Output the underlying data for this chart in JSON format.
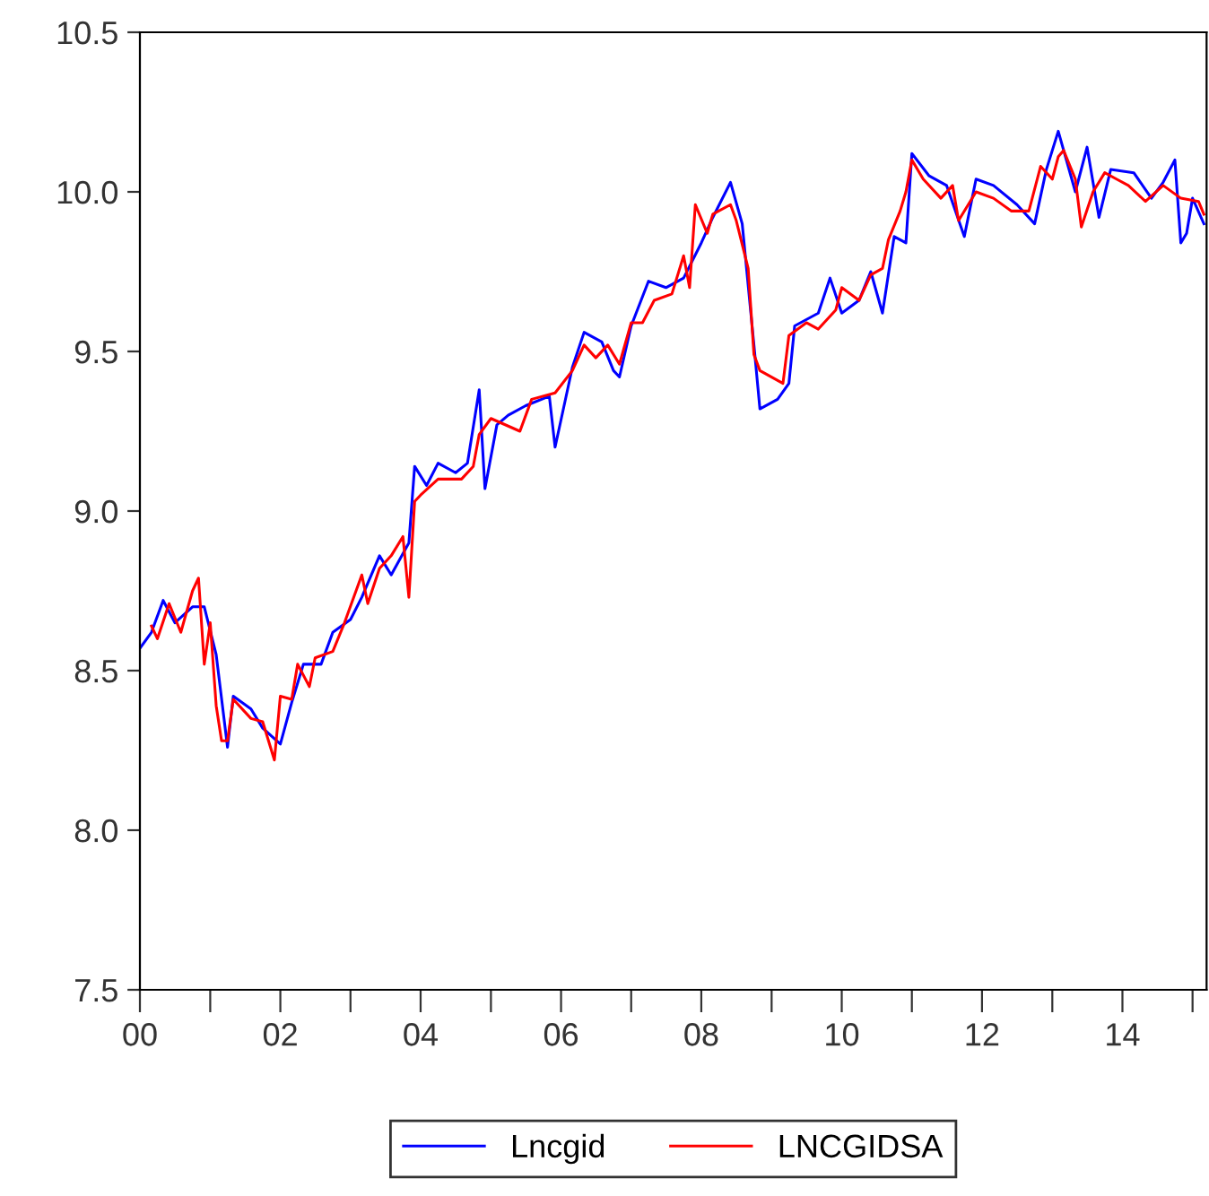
{
  "chart_data": {
    "type": "line",
    "legend": "bottom",
    "grid": false,
    "line_style": "solid",
    "marker": "none",
    "xlim": [
      "2000-01",
      "2015-03-15"
    ],
    "xticks": [
      {
        "value": "2000",
        "label": "00"
      },
      {
        "value": "2001",
        "label": null
      },
      {
        "value": "2002",
        "label": "02"
      },
      {
        "value": "2003",
        "label": null
      },
      {
        "value": "2004",
        "label": "04"
      },
      {
        "value": "2005",
        "label": null
      },
      {
        "value": "2006",
        "label": "06"
      },
      {
        "value": "2007",
        "label": null
      },
      {
        "value": "2008",
        "label": "08"
      },
      {
        "value": "2009",
        "label": null
      },
      {
        "value": "2010",
        "label": "10"
      },
      {
        "value": "2011",
        "label": null
      },
      {
        "value": "2012",
        "label": "12"
      },
      {
        "value": "2013",
        "label": null
      },
      {
        "value": "2014",
        "label": "14"
      },
      {
        "value": "2015",
        "label": null
      }
    ],
    "ylim": [
      7.5,
      10.5
    ],
    "yticks": [
      7.5,
      {
        "value": 8,
        "label": "8.0"
      },
      8.5,
      {
        "value": 9,
        "label": "9.0"
      },
      9.5,
      {
        "value": 10,
        "label": "10.0"
      },
      10.5
    ],
    "series": [
      {
        "name": "Lncgid",
        "color": "#0000ff",
        "x": [
          "2000-01",
          "2000-03",
          "2000-05",
          "2000-07",
          "2000-10",
          "2000-12",
          "2001-02",
          "2001-04",
          "2001-05",
          "2001-08",
          "2001-10",
          "2002-01",
          "2002-03",
          "2002-05",
          "2002-08",
          "2002-10",
          "2003-01",
          "2003-03",
          "2003-06",
          "2003-08",
          "2003-11",
          "2003-12",
          "2004-02",
          "2004-04",
          "2004-07",
          "2004-09",
          "2004-11",
          "2004-12",
          "2005-02",
          "2005-04",
          "2005-07",
          "2005-11",
          "2005-12",
          "2006-03",
          "2006-05",
          "2006-08",
          "2006-10",
          "2006-11",
          "2007-01",
          "2007-04",
          "2007-07",
          "2007-10",
          "2008-01",
          "2008-03",
          "2008-06",
          "2008-08",
          "2008-10",
          "2008-11",
          "2009-02",
          "2009-04",
          "2009-05",
          "2009-09",
          "2009-11",
          "2010-01",
          "2010-04",
          "2010-06",
          "2010-08",
          "2010-10",
          "2010-12",
          "2011-01",
          "2011-04",
          "2011-07",
          "2011-10",
          "2011-12",
          "2012-03",
          "2012-07",
          "2012-10",
          "2012-12",
          "2013-02",
          "2013-05",
          "2013-07",
          "2013-09",
          "2013-11",
          "2014-03",
          "2014-06",
          "2014-08",
          "2014-10",
          "2014-11",
          "2014-12",
          "2015-01",
          "2015-03"
        ],
        "values": [
          8.57,
          8.62,
          8.72,
          8.65,
          8.7,
          8.7,
          8.55,
          8.26,
          8.42,
          8.38,
          8.32,
          8.27,
          8.4,
          8.52,
          8.52,
          8.62,
          8.66,
          8.73,
          8.86,
          8.8,
          8.9,
          9.14,
          9.08,
          9.15,
          9.12,
          9.15,
          9.38,
          9.07,
          9.27,
          9.3,
          9.33,
          9.36,
          9.2,
          9.45,
          9.56,
          9.53,
          9.44,
          9.42,
          9.58,
          9.72,
          9.7,
          9.73,
          9.84,
          9.92,
          10.03,
          9.9,
          9.52,
          9.32,
          9.35,
          9.4,
          9.58,
          9.62,
          9.73,
          9.62,
          9.66,
          9.75,
          9.62,
          9.86,
          9.84,
          10.12,
          10.05,
          10.02,
          9.86,
          10.04,
          10.02,
          9.96,
          9.9,
          10.07,
          10.19,
          10.0,
          10.14,
          9.92,
          10.07,
          10.06,
          9.98,
          10.03,
          10.1,
          9.84,
          9.87,
          9.98,
          9.9
        ]
      },
      {
        "name": "LNCGIDSA",
        "color": "#ff0000",
        "x": [
          "2000-03",
          "2000-04",
          "2000-06",
          "2000-08",
          "2000-10",
          "2000-11",
          "2000-12",
          "2001-01",
          "2001-02",
          "2001-03",
          "2001-04",
          "2001-05",
          "2001-08",
          "2001-10",
          "2001-12",
          "2002-01",
          "2002-03",
          "2002-04",
          "2002-06",
          "2002-07",
          "2002-10",
          "2002-12",
          "2003-03",
          "2003-04",
          "2003-06",
          "2003-08",
          "2003-10",
          "2003-11",
          "2003-12",
          "2004-01",
          "2004-04",
          "2004-08",
          "2004-10",
          "2004-11",
          "2005-01",
          "2005-06",
          "2005-08",
          "2005-12",
          "2006-03",
          "2006-05",
          "2006-07",
          "2006-09",
          "2006-11",
          "2007-01",
          "2007-03",
          "2007-05",
          "2007-08",
          "2007-10",
          "2007-11",
          "2007-12",
          "2008-02",
          "2008-03",
          "2008-06",
          "2008-07",
          "2008-09",
          "2008-10",
          "2008-11",
          "2009-03",
          "2009-04",
          "2009-07",
          "2009-09",
          "2009-12",
          "2010-01",
          "2010-04",
          "2010-06",
          "2010-08",
          "2010-09",
          "2010-11",
          "2010-12",
          "2011-01",
          "2011-03",
          "2011-06",
          "2011-08",
          "2011-09",
          "2011-12",
          "2012-03",
          "2012-06",
          "2012-09",
          "2012-11",
          "2013-01",
          "2013-02",
          "2013-03",
          "2013-05",
          "2013-06",
          "2013-08",
          "2013-10",
          "2013-12",
          "2014-02",
          "2014-05",
          "2014-08",
          "2014-11",
          "2015-02",
          "2015-03"
        ],
        "values": [
          8.64,
          8.6,
          8.71,
          8.62,
          8.75,
          8.79,
          8.52,
          8.65,
          8.39,
          8.28,
          8.28,
          8.41,
          8.35,
          8.34,
          8.22,
          8.42,
          8.41,
          8.52,
          8.45,
          8.54,
          8.56,
          8.65,
          8.8,
          8.71,
          8.82,
          8.86,
          8.92,
          8.73,
          9.03,
          9.05,
          9.1,
          9.1,
          9.14,
          9.24,
          9.29,
          9.25,
          9.35,
          9.37,
          9.44,
          9.52,
          9.48,
          9.52,
          9.46,
          9.59,
          9.59,
          9.66,
          9.68,
          9.8,
          9.7,
          9.96,
          9.87,
          9.93,
          9.96,
          9.91,
          9.76,
          9.49,
          9.44,
          9.4,
          9.55,
          9.59,
          9.57,
          9.63,
          9.7,
          9.66,
          9.74,
          9.76,
          9.85,
          9.94,
          10.0,
          10.1,
          10.04,
          9.98,
          10.02,
          9.91,
          10.0,
          9.98,
          9.94,
          9.94,
          10.08,
          10.04,
          10.11,
          10.13,
          10.04,
          9.89,
          10.0,
          10.06,
          10.04,
          10.02,
          9.97,
          10.02,
          9.98,
          9.97,
          9.93
        ]
      }
    ]
  }
}
